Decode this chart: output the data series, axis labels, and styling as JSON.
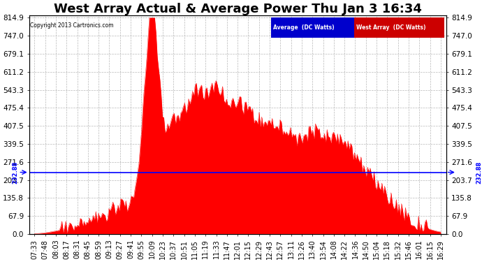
{
  "title": "West Array Actual & Average Power Thu Jan 3 16:34",
  "copyright": "Copyright 2013 Cartronics.com",
  "avg_value": 232.88,
  "y_max": 814.9,
  "y_min": 0.0,
  "y_ticks": [
    0.0,
    67.9,
    135.8,
    203.7,
    271.6,
    339.5,
    407.5,
    475.4,
    543.3,
    611.2,
    679.1,
    747.0,
    814.9
  ],
  "avg_color": "#0000ff",
  "west_color": "#ff0000",
  "bg_color": "#ffffff",
  "plot_bg": "#ffffff",
  "grid_color": "#b0b0b0",
  "legend_avg_bg": "#0000cc",
  "legend_west_bg": "#cc0000",
  "x_labels": [
    "07:33",
    "07:48",
    "08:03",
    "08:17",
    "08:31",
    "08:45",
    "08:59",
    "09:13",
    "09:27",
    "09:41",
    "09:55",
    "10:09",
    "10:23",
    "10:37",
    "10:51",
    "11:05",
    "11:19",
    "11:33",
    "11:47",
    "12:01",
    "12:15",
    "12:29",
    "12:43",
    "12:57",
    "13:11",
    "13:26",
    "13:40",
    "13:54",
    "14:08",
    "14:22",
    "14:36",
    "14:50",
    "15:04",
    "15:18",
    "15:32",
    "15:46",
    "16:01",
    "16:15",
    "16:29"
  ],
  "west_data": [
    2,
    5,
    12,
    20,
    30,
    45,
    60,
    80,
    100,
    120,
    380,
    814,
    450,
    430,
    460,
    540,
    520,
    555,
    510,
    490,
    460,
    430,
    420,
    400,
    370,
    350,
    380,
    370,
    360,
    340,
    290,
    240,
    190,
    140,
    95,
    60,
    35,
    18,
    8
  ],
  "avg_annotation": "232.88",
  "title_fontsize": 13,
  "label_fontsize": 7,
  "axis_fontsize": 7.5,
  "avg_label_fontsize": 6
}
